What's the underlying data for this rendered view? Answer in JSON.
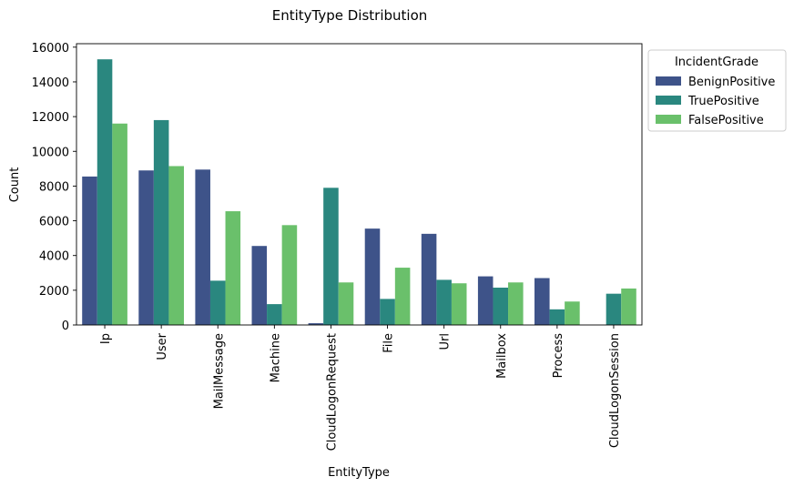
{
  "chart_data": {
    "type": "bar",
    "title": "EntityType Distribution",
    "xlabel": "EntityType",
    "ylabel": "Count",
    "ylim": [
      0,
      16200
    ],
    "yticks": [
      0,
      2000,
      4000,
      6000,
      8000,
      10000,
      12000,
      14000,
      16000
    ],
    "categories": [
      "Ip",
      "User",
      "MailMessage",
      "Machine",
      "CloudLogonRequest",
      "File",
      "Url",
      "Mailbox",
      "Process",
      "CloudLogonSession"
    ],
    "series": [
      {
        "name": "BenignPositive",
        "color": "#3e5389",
        "values": [
          8550,
          8900,
          8950,
          4550,
          100,
          5550,
          5250,
          2800,
          2700,
          0
        ]
      },
      {
        "name": "TruePositive",
        "color": "#2a877f",
        "values": [
          15300,
          11800,
          2550,
          1200,
          7900,
          1500,
          2600,
          2150,
          900,
          1800
        ]
      },
      {
        "name": "FalsePositive",
        "color": "#6ac06b",
        "values": [
          11600,
          9150,
          6550,
          5750,
          2450,
          3300,
          2400,
          2450,
          1350,
          2100
        ]
      }
    ],
    "legend": {
      "title": "IncidentGrade",
      "placement": "upper-right-outside"
    },
    "grid": false
  }
}
